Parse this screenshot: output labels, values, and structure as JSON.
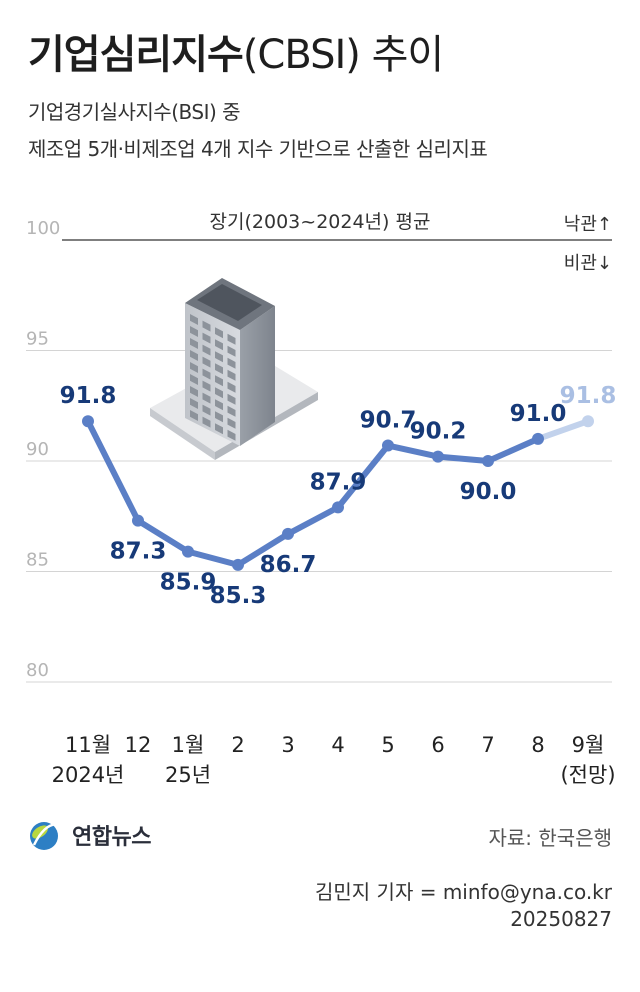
{
  "title": {
    "bold": "기업심리지수",
    "rest": "(CBSI) 추이"
  },
  "subtitle": [
    "기업경기실사지수(BSI) 중",
    "제조업 5개·비제조업 4개 지수 기반으로 산출한 심리지표"
  ],
  "chart_data": {
    "type": "line",
    "reference_line": {
      "value": 100,
      "label": "장기(2003~2024년) 평균"
    },
    "side_labels": {
      "up": "낙관↑",
      "down": "비관↓"
    },
    "y_ticks": [
      100,
      95,
      90,
      85,
      80
    ],
    "ylim": [
      80,
      100
    ],
    "x_labels": [
      {
        "line1": "11월",
        "line2": "2024년"
      },
      {
        "line1": "12",
        "line2": ""
      },
      {
        "line1": "1월",
        "line2": "25년"
      },
      {
        "line1": "2",
        "line2": ""
      },
      {
        "line1": "3",
        "line2": ""
      },
      {
        "line1": "4",
        "line2": ""
      },
      {
        "line1": "5",
        "line2": ""
      },
      {
        "line1": "6",
        "line2": ""
      },
      {
        "line1": "7",
        "line2": ""
      },
      {
        "line1": "8",
        "line2": ""
      },
      {
        "line1": "9월",
        "line2": "(전망)"
      }
    ],
    "values": [
      91.8,
      87.3,
      85.9,
      85.3,
      86.7,
      87.9,
      90.7,
      90.2,
      90.0,
      91.0,
      91.8
    ],
    "label_position": [
      "above",
      "below",
      "below",
      "below",
      "below",
      "above",
      "above",
      "above",
      "below",
      "above",
      "above"
    ],
    "forecast_index": 10,
    "colors": {
      "line": "#5b7fc6",
      "forecast": "#c2d2ec",
      "label": "#173a78",
      "forecast_label": "#aabfe3",
      "grid": "#d4d4d4",
      "tick": "#b5b5b5"
    }
  },
  "logo": {
    "text": "연합뉴스"
  },
  "source": "자료: 한국은행",
  "credit": {
    "author": "김민지 기자 = minfo@yna.co.kr",
    "date": "20250827"
  }
}
